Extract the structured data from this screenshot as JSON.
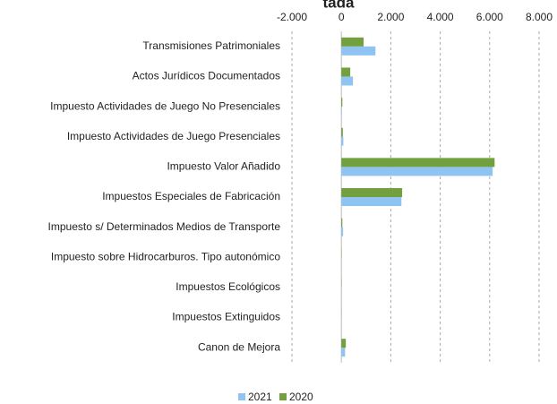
{
  "chart_data": {
    "type": "bar",
    "orientation": "horizontal",
    "title": "tada",
    "categories": [
      "Transmisiones Patrimoniales",
      "Actos Jurídicos Documentados",
      "Impuesto Actividades de Juego No Presenciales",
      "Impuesto Actividades de Juego Presenciales",
      "Impuesto Valor Añadido",
      "Impuestos Especiales de Fabricación",
      "Impuesto s/ Determinados Medios de Transporte",
      "Impuesto sobre Hidrocarburos. Tipo autonómico",
      "Impuestos Ecológicos",
      "Impuestos Extinguidos",
      "Canon de Mejora"
    ],
    "series": [
      {
        "name": "2021",
        "color": "#8fc3f2",
        "values": [
          1380,
          470,
          20,
          80,
          6120,
          2430,
          70,
          10,
          10,
          5,
          150
        ]
      },
      {
        "name": "2020",
        "color": "#72a03e",
        "values": [
          900,
          360,
          40,
          60,
          6200,
          2460,
          40,
          10,
          10,
          5,
          180
        ]
      }
    ],
    "xlim": [
      -2000,
      8000
    ],
    "xticks": [
      {
        "value": -2000,
        "label": "-2.000"
      },
      0,
      {
        "value": 2000,
        "label": "2.000"
      },
      {
        "value": 4000,
        "label": "4.000"
      },
      {
        "value": 6000,
        "label": "6.000"
      },
      {
        "value": 8000,
        "label": "8.000"
      }
    ],
    "grid": true,
    "legend": "bottom"
  }
}
